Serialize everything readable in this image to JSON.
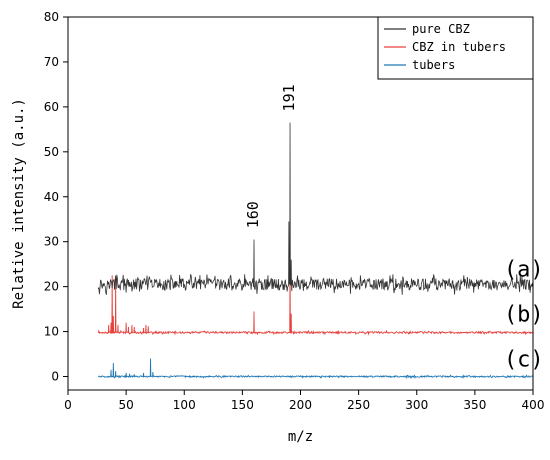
{
  "chart_data": {
    "type": "line",
    "xlabel": "m/z",
    "ylabel": "Relative intensity (a.u.)",
    "xlim": [
      0,
      400
    ],
    "ylim": [
      -3,
      80
    ],
    "xticks": [
      0,
      50,
      100,
      150,
      200,
      250,
      300,
      350,
      400
    ],
    "yticks": [
      0,
      10,
      20,
      30,
      40,
      50,
      60,
      70,
      80
    ],
    "legend_position": "top-right",
    "series": [
      {
        "name": "pure CBZ",
        "color": "#333333",
        "baseline": 20.5,
        "noise": 1.3,
        "x_range": [
          26,
          400
        ],
        "peaks": [
          {
            "x": 160,
            "y": 30.5
          },
          {
            "x": 190,
            "y": 34.5
          },
          {
            "x": 191,
            "y": 56.5
          },
          {
            "x": 192,
            "y": 26.0
          }
        ]
      },
      {
        "name": "CBZ in tubers",
        "color": "#e8413c",
        "baseline": 9.8,
        "noise": 0.2,
        "x_range": [
          26,
          400
        ],
        "peaks": [
          {
            "x": 35,
            "y": 11.5
          },
          {
            "x": 37,
            "y": 12.0
          },
          {
            "x": 38,
            "y": 22.5
          },
          {
            "x": 39,
            "y": 13.5
          },
          {
            "x": 41,
            "y": 22.0
          },
          {
            "x": 43,
            "y": 11.5
          },
          {
            "x": 50,
            "y": 12.0
          },
          {
            "x": 52,
            "y": 11.0
          },
          {
            "x": 55,
            "y": 11.5
          },
          {
            "x": 57,
            "y": 11.0
          },
          {
            "x": 65,
            "y": 10.8
          },
          {
            "x": 67,
            "y": 11.5
          },
          {
            "x": 69,
            "y": 11.2
          },
          {
            "x": 160,
            "y": 14.5
          },
          {
            "x": 191,
            "y": 26.0
          },
          {
            "x": 192,
            "y": 14.0
          }
        ]
      },
      {
        "name": "tubers",
        "color": "#1f77b4",
        "baseline": 0,
        "noise": 0.15,
        "x_range": [
          26,
          400
        ],
        "peaks": [
          {
            "x": 37,
            "y": 1.5
          },
          {
            "x": 39,
            "y": 3.0
          },
          {
            "x": 41,
            "y": 1.2
          },
          {
            "x": 50,
            "y": 0.8
          },
          {
            "x": 53,
            "y": 0.6
          },
          {
            "x": 57,
            "y": 0.5
          },
          {
            "x": 65,
            "y": 0.8
          },
          {
            "x": 71,
            "y": 4.0
          },
          {
            "x": 73,
            "y": 1.0
          }
        ]
      }
    ],
    "annotations": [
      {
        "text": "160",
        "x": 160,
        "y": 36,
        "rotation": -90
      },
      {
        "text": "191",
        "x": 191,
        "y": 62,
        "rotation": -90
      }
    ],
    "panel_labels": [
      {
        "text": "(a)",
        "x": 375,
        "y": 24
      },
      {
        "text": "(b)",
        "x": 375,
        "y": 14
      },
      {
        "text": "(c)",
        "x": 375,
        "y": 4
      }
    ]
  }
}
